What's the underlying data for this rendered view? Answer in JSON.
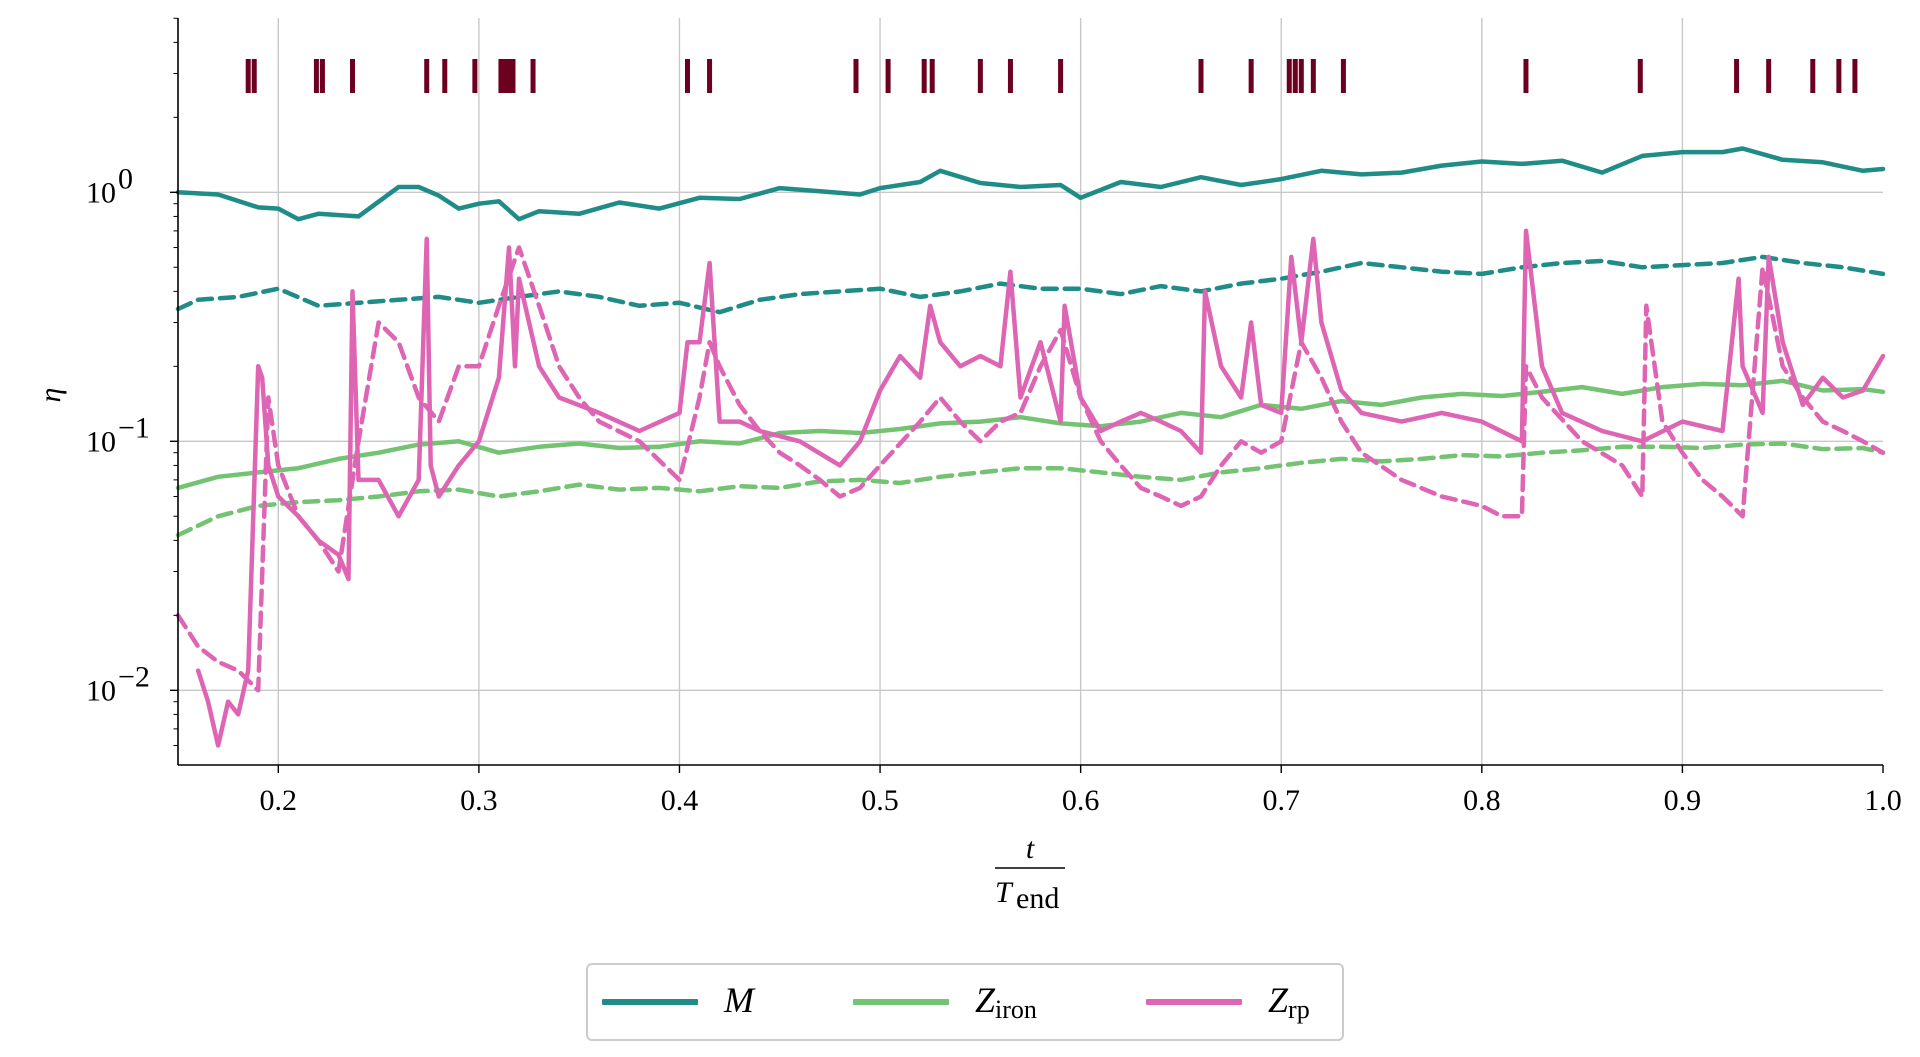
{
  "chart_data": {
    "type": "line",
    "title": "",
    "xlabel_num": "t",
    "xlabel_den": "T",
    "xlabel_den_sub": "end",
    "ylabel": "η",
    "xlim": [
      0.15,
      1.0
    ],
    "ylim_log10": [
      -2.3,
      0.7
    ],
    "yscale": "log",
    "grid": true,
    "legend_position": "bottom-center",
    "x_ticks": [
      0.2,
      0.3,
      0.4,
      0.5,
      0.6,
      0.7,
      0.8,
      0.9,
      1.0
    ],
    "x_tick_labels": [
      "0.2",
      "0.3",
      "0.4",
      "0.5",
      "0.6",
      "0.7",
      "0.8",
      "0.9",
      "1.0"
    ],
    "y_ticks": [
      {
        "value": 1,
        "base": "10",
        "exp": "0"
      },
      {
        "value": 0.1,
        "base": "10",
        "exp": "−1"
      },
      {
        "value": 0.01,
        "base": "10",
        "exp": "−2"
      }
    ],
    "event_marker_color": "#6b0020",
    "event_markers_x": [
      0.185,
      0.188,
      0.219,
      0.222,
      0.237,
      0.274,
      0.283,
      0.298,
      0.311,
      0.313,
      0.315,
      0.317,
      0.327,
      0.404,
      0.415,
      0.488,
      0.504,
      0.522,
      0.526,
      0.55,
      0.565,
      0.59,
      0.66,
      0.685,
      0.704,
      0.707,
      0.71,
      0.716,
      0.731,
      0.822,
      0.879,
      0.927,
      0.943,
      0.965,
      0.978,
      0.986
    ],
    "legend": [
      {
        "label": "M",
        "sub": "",
        "color": "#1f8c87"
      },
      {
        "label": "Z",
        "sub": "iron",
        "color": "#73c373"
      },
      {
        "label": "Z",
        "sub": "rp",
        "color": "#dd65b3"
      }
    ],
    "series": [
      {
        "legend_key": "M",
        "style": "solid",
        "color": "#1f8c87",
        "x": [
          0.15,
          0.17,
          0.19,
          0.2,
          0.21,
          0.22,
          0.24,
          0.26,
          0.27,
          0.28,
          0.29,
          0.3,
          0.31,
          0.32,
          0.33,
          0.35,
          0.37,
          0.39,
          0.41,
          0.43,
          0.45,
          0.47,
          0.49,
          0.5,
          0.52,
          0.53,
          0.55,
          0.57,
          0.59,
          0.6,
          0.62,
          0.64,
          0.66,
          0.68,
          0.7,
          0.72,
          0.74,
          0.76,
          0.78,
          0.8,
          0.82,
          0.84,
          0.86,
          0.88,
          0.9,
          0.92,
          0.93,
          0.95,
          0.97,
          0.99,
          1.0
        ],
        "y": [
          1.0,
          0.98,
          0.87,
          0.86,
          0.78,
          0.82,
          0.8,
          1.05,
          1.05,
          0.97,
          0.86,
          0.9,
          0.92,
          0.78,
          0.84,
          0.82,
          0.91,
          0.86,
          0.95,
          0.94,
          1.04,
          1.01,
          0.98,
          1.04,
          1.1,
          1.22,
          1.09,
          1.05,
          1.07,
          0.95,
          1.1,
          1.05,
          1.15,
          1.07,
          1.13,
          1.22,
          1.18,
          1.2,
          1.28,
          1.33,
          1.3,
          1.34,
          1.2,
          1.4,
          1.45,
          1.45,
          1.5,
          1.35,
          1.32,
          1.22,
          1.24
        ]
      },
      {
        "legend_key": "M",
        "style": "dashed",
        "color": "#1f8c87",
        "x": [
          0.15,
          0.16,
          0.18,
          0.2,
          0.22,
          0.24,
          0.26,
          0.28,
          0.3,
          0.32,
          0.34,
          0.36,
          0.38,
          0.4,
          0.42,
          0.44,
          0.46,
          0.48,
          0.5,
          0.52,
          0.54,
          0.56,
          0.58,
          0.6,
          0.62,
          0.64,
          0.66,
          0.68,
          0.7,
          0.72,
          0.74,
          0.76,
          0.78,
          0.8,
          0.82,
          0.84,
          0.86,
          0.88,
          0.9,
          0.92,
          0.94,
          0.96,
          0.98,
          1.0
        ],
        "y": [
          0.34,
          0.37,
          0.38,
          0.41,
          0.35,
          0.36,
          0.37,
          0.38,
          0.36,
          0.38,
          0.4,
          0.38,
          0.35,
          0.36,
          0.33,
          0.37,
          0.39,
          0.4,
          0.41,
          0.38,
          0.4,
          0.43,
          0.41,
          0.41,
          0.39,
          0.42,
          0.4,
          0.43,
          0.45,
          0.48,
          0.52,
          0.5,
          0.48,
          0.47,
          0.5,
          0.52,
          0.53,
          0.5,
          0.51,
          0.52,
          0.55,
          0.52,
          0.5,
          0.47
        ]
      },
      {
        "legend_key": "Z_iron",
        "style": "solid",
        "color": "#73c373",
        "x": [
          0.15,
          0.17,
          0.19,
          0.21,
          0.23,
          0.25,
          0.27,
          0.29,
          0.31,
          0.33,
          0.35,
          0.37,
          0.39,
          0.41,
          0.43,
          0.45,
          0.47,
          0.49,
          0.51,
          0.53,
          0.55,
          0.57,
          0.59,
          0.61,
          0.63,
          0.65,
          0.67,
          0.69,
          0.71,
          0.73,
          0.75,
          0.77,
          0.79,
          0.81,
          0.83,
          0.85,
          0.87,
          0.89,
          0.91,
          0.93,
          0.95,
          0.97,
          0.99,
          1.0
        ],
        "y": [
          0.065,
          0.072,
          0.075,
          0.078,
          0.085,
          0.09,
          0.097,
          0.1,
          0.09,
          0.095,
          0.098,
          0.094,
          0.095,
          0.1,
          0.098,
          0.108,
          0.11,
          0.108,
          0.112,
          0.118,
          0.12,
          0.125,
          0.118,
          0.115,
          0.12,
          0.13,
          0.125,
          0.14,
          0.135,
          0.145,
          0.14,
          0.15,
          0.155,
          0.152,
          0.158,
          0.165,
          0.155,
          0.165,
          0.17,
          0.168,
          0.175,
          0.16,
          0.162,
          0.158
        ]
      },
      {
        "legend_key": "Z_iron",
        "style": "dashed",
        "color": "#73c373",
        "x": [
          0.15,
          0.17,
          0.19,
          0.21,
          0.23,
          0.25,
          0.27,
          0.29,
          0.31,
          0.33,
          0.35,
          0.37,
          0.39,
          0.41,
          0.43,
          0.45,
          0.47,
          0.49,
          0.51,
          0.53,
          0.55,
          0.57,
          0.59,
          0.61,
          0.63,
          0.65,
          0.67,
          0.69,
          0.71,
          0.73,
          0.75,
          0.77,
          0.79,
          0.81,
          0.83,
          0.85,
          0.87,
          0.89,
          0.91,
          0.93,
          0.95,
          0.97,
          0.99,
          1.0
        ],
        "y": [
          0.042,
          0.05,
          0.055,
          0.057,
          0.058,
          0.06,
          0.063,
          0.064,
          0.06,
          0.063,
          0.067,
          0.064,
          0.065,
          0.063,
          0.066,
          0.065,
          0.069,
          0.07,
          0.068,
          0.072,
          0.075,
          0.078,
          0.078,
          0.075,
          0.072,
          0.07,
          0.075,
          0.078,
          0.082,
          0.085,
          0.083,
          0.085,
          0.088,
          0.087,
          0.09,
          0.092,
          0.095,
          0.095,
          0.094,
          0.097,
          0.098,
          0.093,
          0.094,
          0.09
        ]
      },
      {
        "legend_key": "Z_rp",
        "style": "solid",
        "color": "#dd65b3",
        "x": [
          0.16,
          0.165,
          0.17,
          0.175,
          0.18,
          0.185,
          0.19,
          0.192,
          0.195,
          0.2,
          0.21,
          0.22,
          0.23,
          0.235,
          0.237,
          0.24,
          0.25,
          0.26,
          0.27,
          0.274,
          0.276,
          0.28,
          0.29,
          0.3,
          0.31,
          0.315,
          0.318,
          0.32,
          0.33,
          0.34,
          0.36,
          0.38,
          0.4,
          0.404,
          0.41,
          0.415,
          0.42,
          0.43,
          0.44,
          0.46,
          0.48,
          0.49,
          0.5,
          0.51,
          0.52,
          0.525,
          0.53,
          0.54,
          0.55,
          0.56,
          0.565,
          0.57,
          0.58,
          0.59,
          0.592,
          0.6,
          0.61,
          0.62,
          0.63,
          0.64,
          0.65,
          0.66,
          0.662,
          0.67,
          0.68,
          0.685,
          0.69,
          0.7,
          0.705,
          0.71,
          0.716,
          0.72,
          0.73,
          0.74,
          0.76,
          0.78,
          0.8,
          0.82,
          0.822,
          0.83,
          0.84,
          0.86,
          0.88,
          0.9,
          0.92,
          0.928,
          0.93,
          0.94,
          0.943,
          0.95,
          0.96,
          0.97,
          0.98,
          0.99,
          1.0
        ],
        "y": [
          0.012,
          0.009,
          0.006,
          0.009,
          0.008,
          0.012,
          0.2,
          0.18,
          0.08,
          0.06,
          0.05,
          0.04,
          0.035,
          0.028,
          0.4,
          0.07,
          0.07,
          0.05,
          0.07,
          0.65,
          0.08,
          0.06,
          0.08,
          0.1,
          0.18,
          0.6,
          0.2,
          0.45,
          0.2,
          0.15,
          0.13,
          0.11,
          0.13,
          0.25,
          0.25,
          0.52,
          0.12,
          0.12,
          0.11,
          0.1,
          0.08,
          0.1,
          0.16,
          0.22,
          0.18,
          0.35,
          0.25,
          0.2,
          0.22,
          0.2,
          0.48,
          0.15,
          0.25,
          0.12,
          0.35,
          0.15,
          0.11,
          0.12,
          0.13,
          0.12,
          0.11,
          0.09,
          0.4,
          0.2,
          0.15,
          0.3,
          0.14,
          0.13,
          0.55,
          0.25,
          0.65,
          0.3,
          0.16,
          0.13,
          0.12,
          0.13,
          0.12,
          0.1,
          0.7,
          0.2,
          0.13,
          0.11,
          0.1,
          0.12,
          0.11,
          0.45,
          0.2,
          0.13,
          0.55,
          0.25,
          0.14,
          0.18,
          0.15,
          0.16,
          0.22
        ]
      },
      {
        "legend_key": "Z_rp",
        "style": "dashed",
        "color": "#dd65b3",
        "x": [
          0.15,
          0.16,
          0.17,
          0.18,
          0.19,
          0.195,
          0.2,
          0.21,
          0.22,
          0.23,
          0.24,
          0.25,
          0.26,
          0.27,
          0.28,
          0.29,
          0.3,
          0.31,
          0.32,
          0.33,
          0.34,
          0.35,
          0.36,
          0.38,
          0.4,
          0.41,
          0.415,
          0.42,
          0.43,
          0.44,
          0.45,
          0.46,
          0.47,
          0.48,
          0.49,
          0.5,
          0.52,
          0.53,
          0.54,
          0.55,
          0.56,
          0.57,
          0.58,
          0.59,
          0.6,
          0.61,
          0.62,
          0.63,
          0.64,
          0.65,
          0.66,
          0.67,
          0.68,
          0.69,
          0.7,
          0.71,
          0.72,
          0.73,
          0.74,
          0.76,
          0.78,
          0.8,
          0.81,
          0.82,
          0.822,
          0.83,
          0.85,
          0.87,
          0.88,
          0.882,
          0.89,
          0.9,
          0.91,
          0.92,
          0.93,
          0.94,
          0.95,
          0.96,
          0.97,
          0.98,
          0.99,
          1.0
        ],
        "y": [
          0.02,
          0.015,
          0.013,
          0.012,
          0.01,
          0.15,
          0.08,
          0.05,
          0.04,
          0.03,
          0.1,
          0.3,
          0.25,
          0.15,
          0.12,
          0.2,
          0.2,
          0.35,
          0.6,
          0.35,
          0.2,
          0.15,
          0.12,
          0.1,
          0.07,
          0.15,
          0.25,
          0.2,
          0.14,
          0.11,
          0.09,
          0.08,
          0.07,
          0.06,
          0.065,
          0.08,
          0.12,
          0.15,
          0.12,
          0.1,
          0.12,
          0.13,
          0.2,
          0.28,
          0.15,
          0.1,
          0.08,
          0.065,
          0.06,
          0.055,
          0.06,
          0.08,
          0.1,
          0.09,
          0.1,
          0.25,
          0.18,
          0.12,
          0.09,
          0.07,
          0.06,
          0.055,
          0.05,
          0.05,
          0.2,
          0.15,
          0.1,
          0.08,
          0.06,
          0.35,
          0.12,
          0.09,
          0.07,
          0.06,
          0.05,
          0.5,
          0.2,
          0.15,
          0.12,
          0.11,
          0.1,
          0.09
        ]
      }
    ]
  }
}
